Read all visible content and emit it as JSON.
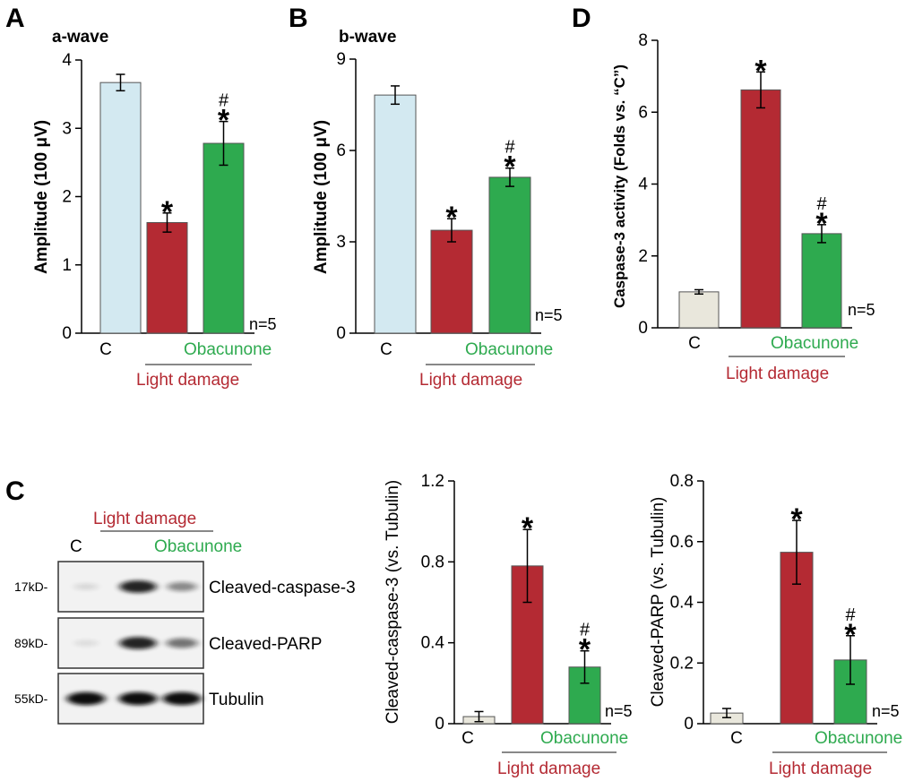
{
  "colors": {
    "control": "#d3e9f1",
    "control_light": "#e9e7dc",
    "light_damage": "#b42a33",
    "obacunone": "#2eaa4f",
    "red_text": "#b42a33",
    "green_text": "#2eaa4f",
    "axis": "#000000"
  },
  "panel_letters": [
    "A",
    "B",
    "D",
    "C"
  ],
  "group_labels": {
    "control": "C",
    "obacunone": "Obacunone",
    "light_damage": "Light damage"
  },
  "chart_data": [
    {
      "id": "A",
      "type": "bar",
      "title": "a-wave",
      "xlabel": "",
      "ylabel": "Amplitude (100 μV)",
      "ylim": [
        0,
        4
      ],
      "yticks": [
        0,
        1,
        2,
        3,
        4
      ],
      "tick_labels": [
        "0",
        "1",
        "2",
        "3",
        "4"
      ],
      "categories": [
        "C",
        "Light damage",
        "Light damage + Obacunone"
      ],
      "values": [
        3.67,
        1.62,
        2.78
      ],
      "errors": [
        0.12,
        0.14,
        0.32
      ],
      "bar_colors": [
        "#d3e9f1",
        "#b42a33",
        "#2eaa4f"
      ],
      "markers": [
        "",
        "*",
        "#*"
      ],
      "n_label": "n=5"
    },
    {
      "id": "B",
      "type": "bar",
      "title": "b-wave",
      "xlabel": "",
      "ylabel": "Amplitude (100 μV)",
      "ylim": [
        0,
        9
      ],
      "yticks": [
        0,
        3,
        6,
        9
      ],
      "tick_labels": [
        "0",
        "3",
        "6",
        "9"
      ],
      "categories": [
        "C",
        "Light damage",
        "Light damage + Obacunone"
      ],
      "values": [
        7.82,
        3.38,
        5.12
      ],
      "errors": [
        0.3,
        0.38,
        0.3
      ],
      "bar_colors": [
        "#d3e9f1",
        "#b42a33",
        "#2eaa4f"
      ],
      "markers": [
        "",
        "*",
        "#*"
      ],
      "n_label": "n=5"
    },
    {
      "id": "D",
      "type": "bar",
      "title": "",
      "xlabel": "",
      "ylabel": "Caspase-3 activity (Folds vs. “C”)",
      "ylim": [
        0,
        8
      ],
      "yticks": [
        0,
        2,
        4,
        6,
        8
      ],
      "tick_labels": [
        "0",
        "2",
        "4",
        "6",
        "8"
      ],
      "categories": [
        "C",
        "Light damage",
        "Light damage + Obacunone"
      ],
      "values": [
        1.0,
        6.62,
        2.62
      ],
      "errors": [
        0.06,
        0.5,
        0.25
      ],
      "bar_colors": [
        "#e9e7dc",
        "#b42a33",
        "#2eaa4f"
      ],
      "markers": [
        "",
        "*",
        "#*"
      ],
      "n_label": "n=5"
    },
    {
      "id": "C1",
      "type": "bar",
      "title": "",
      "xlabel": "",
      "ylabel": "Cleaved-caspase-3 (vs. Tubulin)",
      "ylim": [
        0,
        1.2
      ],
      "yticks": [
        0,
        0.4,
        0.8,
        1.2
      ],
      "tick_labels": [
        "0",
        "0.4",
        "0.8",
        "1.2"
      ],
      "categories": [
        "C",
        "Light damage",
        "Light damage + Obacunone"
      ],
      "values": [
        0.035,
        0.78,
        0.28
      ],
      "errors": [
        0.025,
        0.18,
        0.08
      ],
      "bar_colors": [
        "#e9e7dc",
        "#b42a33",
        "#2eaa4f"
      ],
      "markers": [
        "",
        "*",
        "#*"
      ],
      "n_label": "n=5"
    },
    {
      "id": "C2",
      "type": "bar",
      "title": "",
      "xlabel": "",
      "ylabel": "Cleaved-PARP (vs. Tubulin)",
      "ylim": [
        0,
        0.8
      ],
      "yticks": [
        0,
        0.2,
        0.4,
        0.6,
        0.8
      ],
      "tick_labels": [
        "0",
        "0.2",
        "0.4",
        "0.6",
        "0.8"
      ],
      "categories": [
        "C",
        "Light damage",
        "Light damage + Obacunone"
      ],
      "values": [
        0.035,
        0.565,
        0.21
      ],
      "errors": [
        0.015,
        0.105,
        0.08
      ],
      "bar_colors": [
        "#e9e7dc",
        "#b42a33",
        "#2eaa4f"
      ],
      "markers": [
        "",
        "*",
        "#*"
      ],
      "n_label": "n=5"
    }
  ],
  "western_blot": {
    "group_label_control": "C",
    "group_label_light_damage": "Light damage",
    "group_label_obacunone": "Obacunone",
    "rows": [
      {
        "marker": "17kD-",
        "protein": "Cleaved-caspase-3",
        "intensities": [
          0.06,
          0.85,
          0.4
        ]
      },
      {
        "marker": "89kD-",
        "protein": "Cleaved-PARP",
        "intensities": [
          0.04,
          0.85,
          0.5
        ]
      },
      {
        "marker": "55kD-",
        "protein": "Tubulin",
        "intensities": [
          0.95,
          0.95,
          0.95
        ]
      }
    ]
  }
}
